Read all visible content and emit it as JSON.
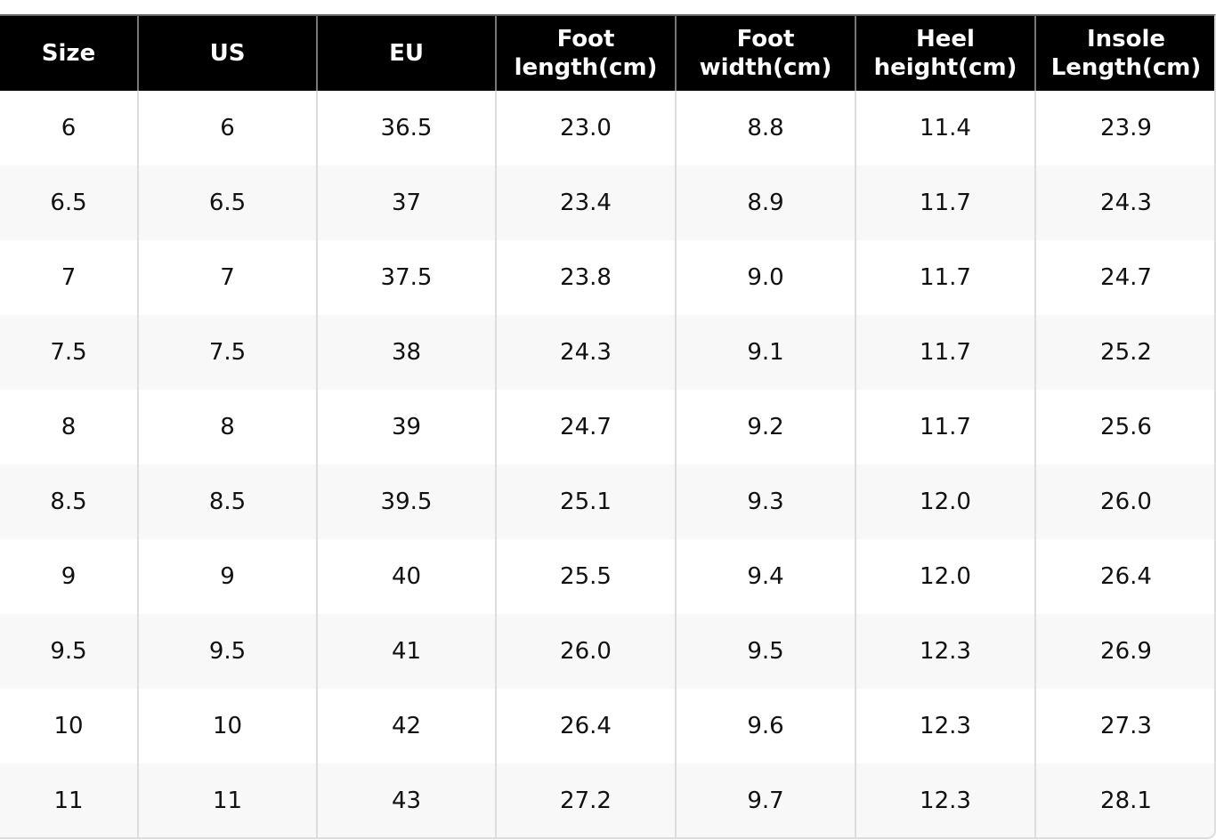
{
  "table": {
    "headers": [
      "Size",
      "US",
      "EU",
      "Foot\nlength(cm)",
      "Foot\nwidth(cm)",
      "Heel\nheight(cm)",
      "Insole\nLength(cm)"
    ],
    "rows": [
      [
        "6",
        "6",
        "36.5",
        "23.0",
        "8.8",
        "11.4",
        "23.9"
      ],
      [
        "6.5",
        "6.5",
        "37",
        "23.4",
        "8.9",
        "11.7",
        "24.3"
      ],
      [
        "7",
        "7",
        "37.5",
        "23.8",
        "9.0",
        "11.7",
        "24.7"
      ],
      [
        "7.5",
        "7.5",
        "38",
        "24.3",
        "9.1",
        "11.7",
        "25.2"
      ],
      [
        "8",
        "8",
        "39",
        "24.7",
        "9.2",
        "11.7",
        "25.6"
      ],
      [
        "8.5",
        "8.5",
        "39.5",
        "25.1",
        "9.3",
        "12.0",
        "26.0"
      ],
      [
        "9",
        "9",
        "40",
        "25.5",
        "9.4",
        "12.0",
        "26.4"
      ],
      [
        "9.5",
        "9.5",
        "41",
        "26.0",
        "9.5",
        "12.3",
        "26.9"
      ],
      [
        "10",
        "10",
        "42",
        "26.4",
        "9.6",
        "12.3",
        "27.3"
      ],
      [
        "11",
        "11",
        "43",
        "27.2",
        "9.7",
        "12.3",
        "28.1"
      ]
    ]
  }
}
